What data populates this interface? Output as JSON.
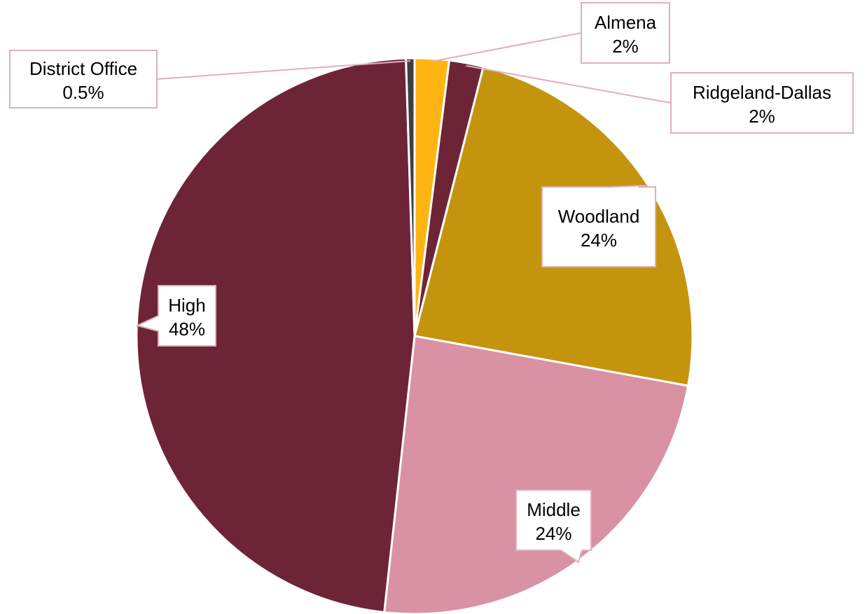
{
  "chart_data": {
    "type": "pie",
    "title": "",
    "slices": [
      {
        "name": "Almena",
        "value": 2,
        "label": "2%",
        "color": "#FFB511"
      },
      {
        "name": "Ridgeland-Dallas",
        "value": 2,
        "label": "2%",
        "color": "#6D2437"
      },
      {
        "name": "Woodland",
        "value": 24,
        "label": "24%",
        "color": "#C5940E"
      },
      {
        "name": "Middle",
        "value": 24,
        "label": "24%",
        "color": "#D992A3"
      },
      {
        "name": "High",
        "value": 48,
        "label": "48%",
        "color": "#6D2437"
      },
      {
        "name": "District Office",
        "value": 0.5,
        "label": "0.5%",
        "color": "#3F3F3F"
      }
    ],
    "label_style": {
      "border_color": "#E0AFBD",
      "background": "#FFFFFF"
    }
  }
}
